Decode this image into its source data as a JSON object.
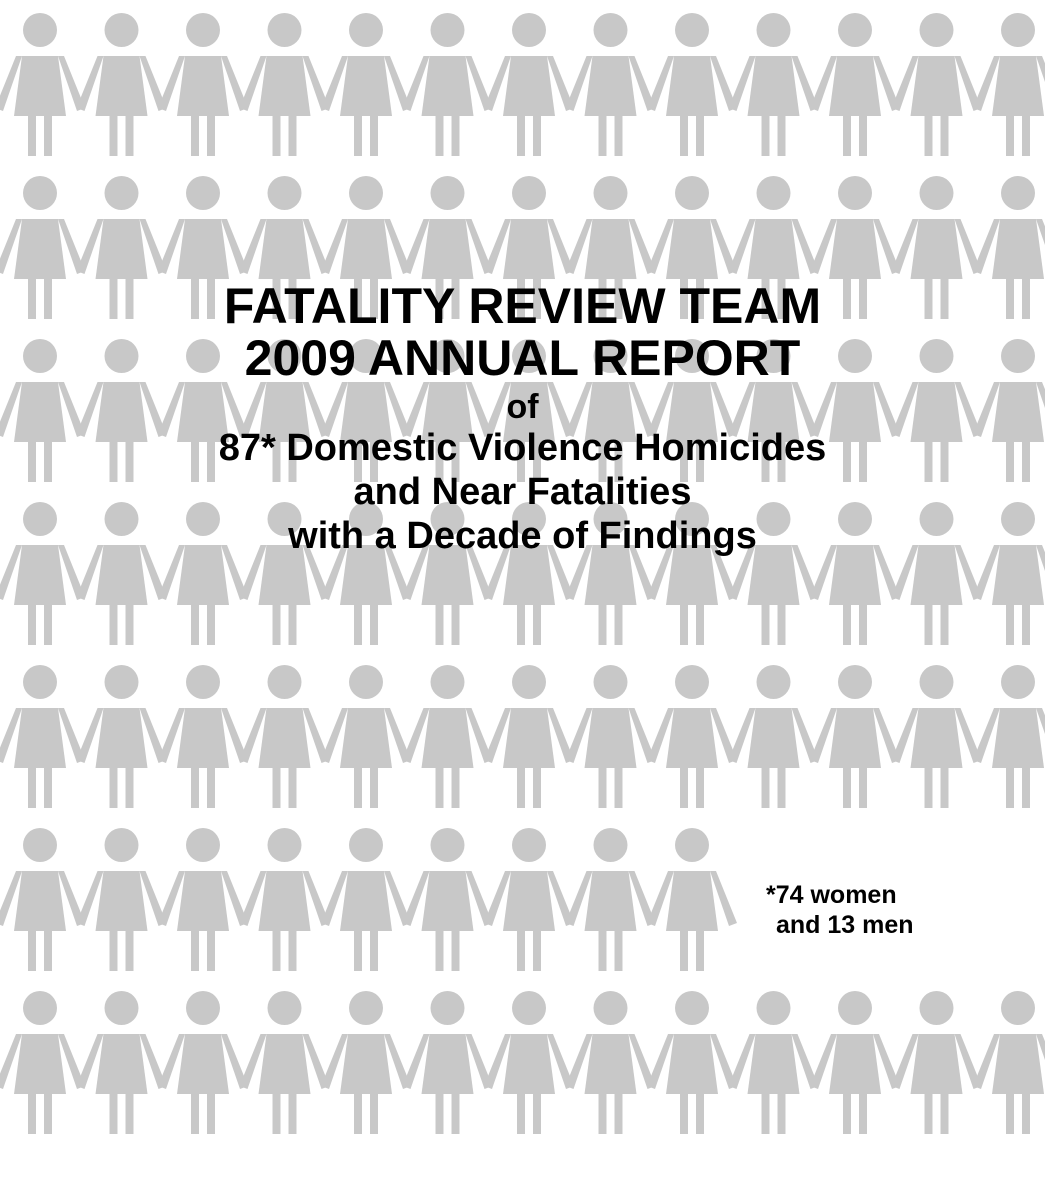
{
  "cover": {
    "title_line_1": "FATALITY REVIEW TEAM",
    "title_line_2": "2009 ANNUAL REPORT",
    "connector": "of",
    "subtitle_line_1": "87* Domestic Violence Homicides",
    "subtitle_line_2": "and Near Fatalities",
    "subtitle_line_3": "with a Decade of Findings"
  },
  "footnote": {
    "line_1": "*74 women",
    "line_2": "and 13 men"
  },
  "figure_pattern": {
    "icon": "person-icon",
    "figures_per_row": 13,
    "rows": [
      13,
      13,
      13,
      13,
      13,
      9,
      13
    ],
    "color": "#c8c8c8"
  }
}
